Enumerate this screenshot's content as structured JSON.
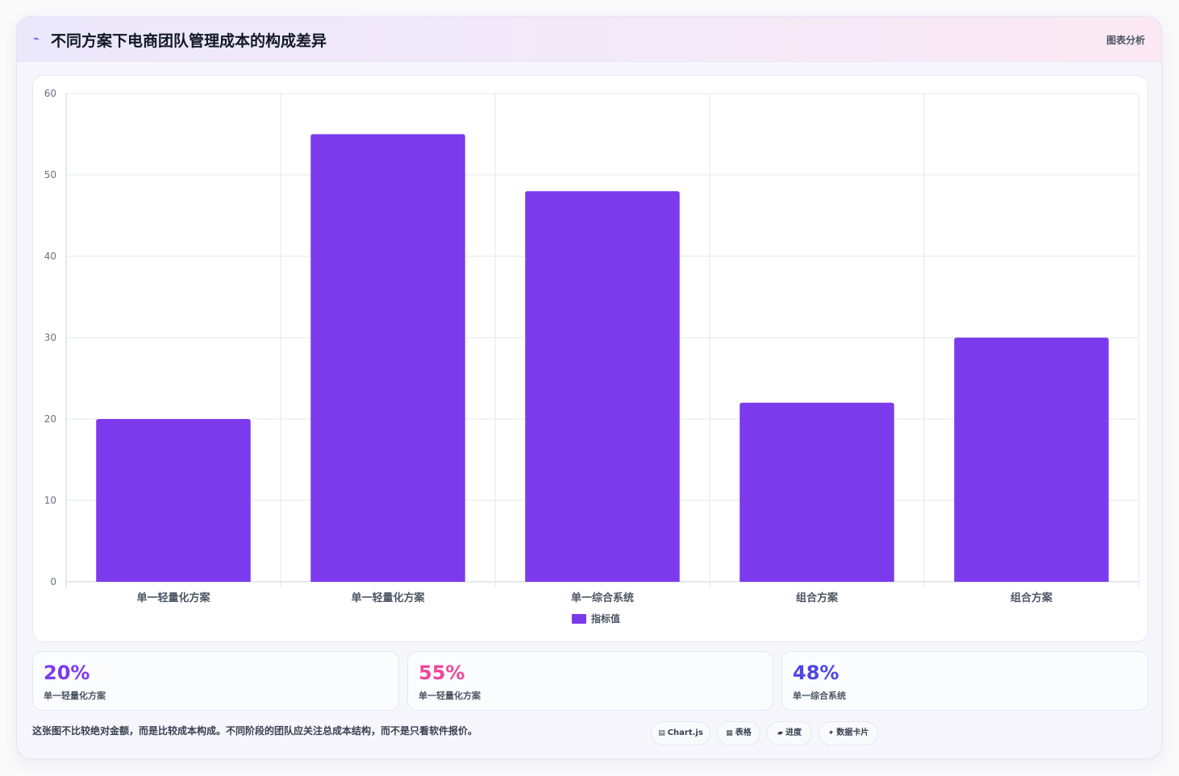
{
  "header": {
    "icon": "chart-line-icon",
    "title": "不同方案下电商团队管理成本的构成差异",
    "tag": "图表分析"
  },
  "chart_data": {
    "type": "bar",
    "title": "",
    "xlabel": "",
    "ylabel": "",
    "categories": [
      "单一轻量化方案",
      "单一轻量化方案",
      "单一综合系统",
      "组合方案",
      "组合方案"
    ],
    "series": [
      {
        "name": "指标值",
        "values": [
          20,
          55,
          48,
          22,
          30
        ],
        "color": "#7c3aed"
      }
    ],
    "ylim": [
      0,
      60
    ],
    "yticks": [
      0,
      10,
      20,
      30,
      40,
      50,
      60
    ],
    "grid": true,
    "legend": "bottom"
  },
  "stats": [
    {
      "value": "20%",
      "label": "单一轻量化方案",
      "color": "#7c3aed"
    },
    {
      "value": "55%",
      "label": "单一轻量化方案",
      "color": "#ec4899"
    },
    {
      "value": "48%",
      "label": "单一综合系统",
      "color": "#4f46e5"
    }
  ],
  "note": "这张图不比较绝对金额，而是比较成本构成。不同阶段的团队应关注总成本结构，而不是只看软件报价。",
  "pills": [
    {
      "glyph": "▤",
      "icon": "chart-icon",
      "label": "Chart.js"
    },
    {
      "glyph": "▦",
      "icon": "table-icon",
      "label": "表格"
    },
    {
      "glyph": "▰",
      "icon": "progress-icon",
      "label": "进度"
    },
    {
      "glyph": "✦",
      "icon": "data-card-icon",
      "label": "数据卡片"
    }
  ]
}
